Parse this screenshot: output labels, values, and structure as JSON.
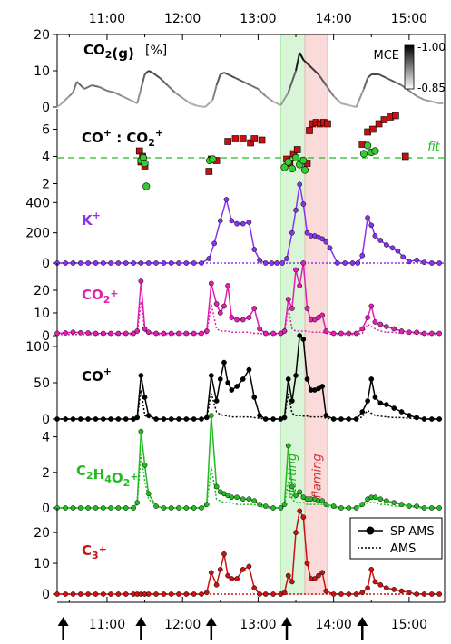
{
  "figure": {
    "time_ticks": [
      "11:00",
      "12:00",
      "13:00",
      "14:00",
      "15:00"
    ],
    "shade_labels": [
      "starting",
      "flaming"
    ],
    "mce_label": "MCE",
    "mce_ticks": [
      "1.00",
      "0.85"
    ],
    "fit_label": "fit",
    "legend": [
      "SP-AMS",
      "AMS"
    ],
    "colors": {
      "k": "#8833ee",
      "co2": "#e020b0",
      "co": "#000000",
      "c2h4o2": "#22bb22",
      "c3": "#cc1111",
      "ratio_square": "#c81010",
      "ratio_circle": "#33cc33",
      "fit_line": "#22bb22",
      "starting_shade": "#d8f5d8",
      "flaming_shade": "#fbdada"
    },
    "markers": {
      "arrow_times": [
        10.42,
        11.45,
        12.38,
        13.38,
        14.38
      ],
      "starting_band": [
        13.3,
        13.62
      ],
      "flaming_band": [
        13.62,
        13.92
      ]
    }
  },
  "chart_data": [
    {
      "type": "line",
      "panel": "co2_gas",
      "title": "CO2(g) [%]",
      "ylim": [
        0,
        20
      ],
      "yticks": [
        0,
        10,
        20
      ],
      "x": [
        10.34,
        10.4,
        10.5,
        10.55,
        10.6,
        10.7,
        10.8,
        10.9,
        11.0,
        11.1,
        11.2,
        11.3,
        11.4,
        11.45,
        11.5,
        11.55,
        11.6,
        11.7,
        11.8,
        11.9,
        12.0,
        12.1,
        12.2,
        12.3,
        12.4,
        12.45,
        12.5,
        12.55,
        12.6,
        12.7,
        12.8,
        12.9,
        13.0,
        13.1,
        13.2,
        13.3,
        13.4,
        13.5,
        13.55,
        13.6,
        13.7,
        13.8,
        13.9,
        14.0,
        14.1,
        14.2,
        14.3,
        14.4,
        14.45,
        14.5,
        14.6,
        14.7,
        14.8,
        14.9,
        15.0,
        15.1,
        15.2,
        15.3,
        15.4,
        15.45
      ],
      "values": [
        0,
        1,
        3,
        4,
        7,
        5,
        6,
        5.5,
        4.5,
        4,
        3,
        2,
        1,
        5,
        9,
        10,
        9.5,
        8,
        6,
        4,
        2.5,
        1,
        0.3,
        0,
        2,
        6,
        9,
        9.5,
        9,
        8,
        7,
        6,
        5,
        3,
        1.5,
        0.5,
        4,
        10,
        15,
        13,
        11,
        9,
        6,
        3,
        1,
        0.5,
        0,
        5,
        8,
        9,
        9,
        8,
        7,
        6,
        4.5,
        3,
        2,
        1.5,
        1,
        1
      ],
      "mce_colorbar": [
        0.85,
        1.0
      ]
    },
    {
      "type": "scatter",
      "panel": "co_co2_ratio",
      "title": "CO+ : CO2+",
      "ylim": [
        1.5,
        7.5
      ],
      "yticks": [
        2,
        4,
        6
      ],
      "fit": 3.9,
      "series": [
        {
          "marker": "square",
          "points": [
            [
              11.43,
              4.4
            ],
            [
              11.45,
              3.6
            ],
            [
              11.47,
              4.0
            ],
            [
              11.5,
              3.3
            ],
            [
              12.35,
              2.9
            ],
            [
              12.38,
              3.8
            ],
            [
              12.45,
              3.7
            ],
            [
              12.6,
              5.1
            ],
            [
              12.7,
              5.3
            ],
            [
              12.8,
              5.3
            ],
            [
              12.9,
              5.0
            ],
            [
              12.95,
              5.3
            ],
            [
              13.05,
              5.2
            ],
            [
              13.38,
              3.8
            ],
            [
              13.42,
              3.5
            ],
            [
              13.47,
              4.2
            ],
            [
              13.52,
              4.5
            ],
            [
              13.65,
              3.5
            ],
            [
              13.68,
              5.9
            ],
            [
              13.72,
              6.4
            ],
            [
              13.77,
              6.5
            ],
            [
              13.82,
              6.4
            ],
            [
              13.87,
              6.5
            ],
            [
              13.92,
              6.4
            ],
            [
              14.38,
              4.9
            ],
            [
              14.45,
              5.8
            ],
            [
              14.52,
              6.0
            ],
            [
              14.6,
              6.4
            ],
            [
              14.67,
              6.7
            ],
            [
              14.75,
              6.9
            ],
            [
              14.82,
              7.0
            ],
            [
              14.95,
              4.0
            ]
          ]
        },
        {
          "marker": "circle",
          "points": [
            [
              11.45,
              3.7
            ],
            [
              11.48,
              3.9
            ],
            [
              11.5,
              3.5
            ],
            [
              11.52,
              1.8
            ],
            [
              12.36,
              3.7
            ],
            [
              12.4,
              3.8
            ],
            [
              13.35,
              3.2
            ],
            [
              13.4,
              3.6
            ],
            [
              13.45,
              3.1
            ],
            [
              13.5,
              3.9
            ],
            [
              13.55,
              3.4
            ],
            [
              13.6,
              3.7
            ],
            [
              13.62,
              3.0
            ],
            [
              14.4,
              4.2
            ],
            [
              14.45,
              4.8
            ],
            [
              14.5,
              4.3
            ],
            [
              14.55,
              4.4
            ]
          ]
        }
      ]
    },
    {
      "type": "line",
      "panel": "k",
      "title": "K+",
      "ylim": [
        0,
        480
      ],
      "yticks": [
        0,
        200,
        400
      ],
      "x": [
        10.34,
        10.45,
        10.55,
        10.65,
        10.75,
        10.85,
        10.95,
        11.05,
        11.15,
        11.25,
        11.35,
        11.45,
        11.55,
        11.65,
        11.75,
        11.85,
        11.95,
        12.05,
        12.15,
        12.25,
        12.35,
        12.42,
        12.5,
        12.58,
        12.65,
        12.72,
        12.8,
        12.88,
        12.95,
        13.02,
        13.1,
        13.18,
        13.25,
        13.32,
        13.38,
        13.45,
        13.5,
        13.55,
        13.6,
        13.65,
        13.7,
        13.75,
        13.8,
        13.85,
        13.9,
        13.95,
        14.05,
        14.15,
        14.25,
        14.32,
        14.38,
        14.45,
        14.5,
        14.55,
        14.62,
        14.7,
        14.78,
        14.85,
        14.92,
        15.0,
        15.1,
        15.2,
        15.3,
        15.4
      ],
      "values": [
        0,
        0,
        0,
        0,
        0,
        0,
        0,
        0,
        0,
        0,
        0,
        0,
        0,
        0,
        0,
        0,
        0,
        0,
        0,
        0,
        30,
        130,
        280,
        420,
        280,
        260,
        260,
        270,
        90,
        20,
        0,
        0,
        0,
        0,
        30,
        200,
        350,
        520,
        390,
        200,
        180,
        180,
        170,
        160,
        140,
        100,
        0,
        0,
        0,
        0,
        50,
        300,
        250,
        180,
        150,
        120,
        100,
        80,
        40,
        10,
        20,
        5,
        0,
        0
      ],
      "baseline": 0
    },
    {
      "type": "line",
      "panel": "co2_ion",
      "title": "CO2+",
      "ylim": [
        0,
        32
      ],
      "yticks": [
        0,
        10,
        20
      ],
      "x": [
        10.34,
        10.45,
        10.55,
        10.65,
        10.75,
        10.85,
        10.95,
        11.05,
        11.15,
        11.25,
        11.35,
        11.4,
        11.45,
        11.5,
        11.55,
        11.65,
        11.75,
        11.85,
        11.95,
        12.05,
        12.15,
        12.25,
        12.32,
        12.38,
        12.45,
        12.5,
        12.55,
        12.6,
        12.65,
        12.72,
        12.8,
        12.88,
        12.95,
        13.02,
        13.1,
        13.2,
        13.3,
        13.35,
        13.4,
        13.45,
        13.5,
        13.55,
        13.6,
        13.65,
        13.7,
        13.75,
        13.8,
        13.85,
        13.9,
        14.0,
        14.1,
        14.2,
        14.3,
        14.38,
        14.45,
        14.5,
        14.55,
        14.62,
        14.7,
        14.8,
        14.9,
        15.0,
        15.1,
        15.2,
        15.3,
        15.4
      ],
      "values": [
        1,
        1.2,
        1.5,
        1.3,
        1.2,
        1,
        1,
        1,
        1,
        1,
        1,
        2,
        24,
        3,
        1.5,
        1,
        1,
        1,
        1,
        1,
        1,
        1,
        2,
        23,
        14,
        10,
        13,
        22,
        8,
        7,
        7,
        8,
        12,
        3,
        1,
        1,
        1,
        2,
        16,
        12,
        29,
        22,
        32,
        12,
        7,
        7,
        8,
        9,
        2,
        1,
        1,
        1,
        1,
        3,
        8,
        13,
        6,
        5,
        4,
        3,
        2,
        1.5,
        1.5,
        1,
        1,
        1
      ],
      "dotted": [
        0.5,
        0.5,
        0.5,
        0.5,
        0.5,
        0.5,
        0.5,
        0.5,
        0.5,
        0.5,
        0.5,
        1,
        15,
        2,
        1,
        0.5,
        0.5,
        0.5,
        0.5,
        0.5,
        0.5,
        0.5,
        1,
        14,
        3,
        2,
        2,
        2,
        1.5,
        1.5,
        1.5,
        1.5,
        1,
        1,
        0.5,
        0.5,
        0.5,
        1,
        12,
        3,
        2,
        2,
        2,
        2,
        1.5,
        1.5,
        1.5,
        1.5,
        1,
        0.5,
        0.5,
        0.5,
        0.5,
        1,
        5,
        4,
        3,
        2,
        1.5,
        1.5,
        1,
        1,
        1,
        0.5,
        0.5,
        0.5
      ]
    },
    {
      "type": "line",
      "panel": "co_ion",
      "title": "CO+",
      "ylim": [
        0,
        115
      ],
      "yticks": [
        0,
        50,
        100
      ],
      "x": [
        10.34,
        10.45,
        10.55,
        10.65,
        10.75,
        10.85,
        10.95,
        11.05,
        11.15,
        11.25,
        11.35,
        11.4,
        11.45,
        11.5,
        11.55,
        11.65,
        11.75,
        11.85,
        11.95,
        12.05,
        12.15,
        12.25,
        12.32,
        12.38,
        12.45,
        12.5,
        12.55,
        12.6,
        12.65,
        12.72,
        12.8,
        12.88,
        12.95,
        13.02,
        13.1,
        13.2,
        13.3,
        13.35,
        13.4,
        13.45,
        13.5,
        13.55,
        13.6,
        13.65,
        13.7,
        13.75,
        13.8,
        13.85,
        13.9,
        14.0,
        14.1,
        14.2,
        14.3,
        14.38,
        14.45,
        14.5,
        14.55,
        14.62,
        14.7,
        14.8,
        14.9,
        15.0,
        15.1,
        15.2,
        15.3,
        15.4
      ],
      "values": [
        0,
        0,
        0,
        0,
        0,
        0,
        0,
        0,
        0,
        0,
        0,
        2,
        60,
        30,
        5,
        0,
        0,
        0,
        0,
        0,
        0,
        0,
        2,
        60,
        25,
        55,
        78,
        50,
        40,
        45,
        55,
        68,
        30,
        5,
        0,
        0,
        0,
        2,
        55,
        25,
        60,
        115,
        110,
        55,
        40,
        40,
        42,
        45,
        5,
        0,
        0,
        0,
        0,
        10,
        25,
        55,
        30,
        22,
        20,
        15,
        10,
        5,
        2,
        0,
        0,
        0
      ],
      "dotted": [
        0,
        0,
        0,
        0,
        0,
        0,
        0,
        0,
        0,
        0,
        0,
        1,
        40,
        5,
        2,
        0,
        0,
        0,
        0,
        0,
        0,
        0,
        1,
        35,
        10,
        6,
        5,
        4,
        3,
        3,
        3,
        3,
        2,
        1,
        0,
        0,
        0,
        1,
        35,
        8,
        5,
        5,
        4,
        4,
        3,
        3,
        3,
        3,
        1,
        0,
        0,
        0,
        0,
        3,
        12,
        8,
        5,
        4,
        3,
        2,
        2,
        1,
        1,
        0,
        0,
        0
      ]
    },
    {
      "type": "line",
      "panel": "c2h4o2_ion",
      "title": "C2H4O2+",
      "ylim": [
        0,
        5
      ],
      "yticks": [
        0,
        2,
        4
      ],
      "x": [
        10.34,
        10.45,
        10.55,
        10.65,
        10.75,
        10.85,
        10.95,
        11.05,
        11.15,
        11.25,
        11.35,
        11.4,
        11.45,
        11.5,
        11.55,
        11.65,
        11.75,
        11.85,
        11.95,
        12.05,
        12.15,
        12.25,
        12.32,
        12.38,
        12.45,
        12.5,
        12.55,
        12.6,
        12.65,
        12.72,
        12.8,
        12.88,
        12.95,
        13.02,
        13.1,
        13.2,
        13.3,
        13.35,
        13.4,
        13.45,
        13.5,
        13.55,
        13.6,
        13.65,
        13.7,
        13.75,
        13.8,
        13.85,
        13.9,
        14.0,
        14.1,
        14.2,
        14.3,
        14.38,
        14.45,
        14.5,
        14.55,
        14.62,
        14.7,
        14.8,
        14.9,
        15.0,
        15.1,
        15.2,
        15.3,
        15.4
      ],
      "values": [
        0,
        0,
        0,
        0,
        0,
        0,
        0,
        0,
        0,
        0,
        0,
        0.3,
        4.3,
        2.4,
        0.8,
        0.1,
        0,
        0,
        0,
        0,
        0,
        0,
        0.2,
        5.2,
        1.2,
        0.9,
        0.8,
        0.7,
        0.6,
        0.6,
        0.5,
        0.5,
        0.4,
        0.2,
        0.1,
        0,
        0,
        0.2,
        3.5,
        1.2,
        0.7,
        0.9,
        0.6,
        0.5,
        0.5,
        0.5,
        0.4,
        0.4,
        0.2,
        0.1,
        0,
        0,
        0,
        0.2,
        0.5,
        0.6,
        0.6,
        0.5,
        0.4,
        0.3,
        0.2,
        0.1,
        0.1,
        0,
        0,
        0
      ],
      "dotted": [
        0,
        0,
        0,
        0,
        0,
        0,
        0,
        0,
        0,
        0,
        0,
        0.2,
        3.0,
        1.5,
        0.5,
        0.1,
        0,
        0,
        0,
        0,
        0,
        0,
        0.1,
        2.3,
        0.5,
        0.4,
        0.3,
        0.3,
        0.3,
        0.2,
        0.2,
        0.2,
        0.2,
        0.1,
        0,
        0,
        0,
        0.1,
        1.5,
        0.5,
        0.3,
        0.3,
        0.3,
        0.2,
        0.2,
        0.2,
        0.2,
        0.2,
        0.1,
        0,
        0,
        0,
        0,
        0.1,
        0.3,
        0.3,
        0.3,
        0.2,
        0.2,
        0.1,
        0.1,
        0.1,
        0,
        0,
        0,
        0
      ]
    },
    {
      "type": "line",
      "panel": "c3_ion",
      "title": "C3+",
      "ylim": [
        0,
        28
      ],
      "yticks": [
        0,
        10,
        20
      ],
      "x": [
        10.34,
        10.45,
        10.55,
        10.65,
        10.75,
        10.85,
        10.95,
        11.05,
        11.15,
        11.25,
        11.35,
        11.4,
        11.45,
        11.5,
        11.55,
        11.65,
        11.75,
        11.85,
        11.95,
        12.05,
        12.15,
        12.25,
        12.32,
        12.38,
        12.45,
        12.5,
        12.55,
        12.6,
        12.65,
        12.72,
        12.8,
        12.88,
        12.95,
        13.02,
        13.1,
        13.2,
        13.3,
        13.35,
        13.4,
        13.45,
        13.5,
        13.55,
        13.6,
        13.65,
        13.7,
        13.75,
        13.8,
        13.85,
        13.9,
        14.0,
        14.1,
        14.2,
        14.3,
        14.38,
        14.45,
        14.5,
        14.55,
        14.62,
        14.7,
        14.8,
        14.9,
        15.0,
        15.1,
        15.2,
        15.3,
        15.4
      ],
      "values": [
        0,
        0,
        0,
        0,
        0,
        0,
        0,
        0,
        0,
        0,
        0,
        0,
        0,
        0,
        0,
        0,
        0,
        0,
        0,
        0,
        0,
        0,
        0.5,
        7,
        3,
        8,
        13,
        6,
        5,
        5,
        8,
        9,
        2,
        0,
        0,
        0,
        0,
        0.5,
        6,
        4,
        20,
        27,
        25,
        10,
        5,
        5,
        6,
        7,
        1,
        0,
        0,
        0,
        0,
        0.5,
        2,
        8,
        4,
        3,
        2,
        1.5,
        1,
        0.5,
        0,
        0,
        0,
        0
      ],
      "dotted": [
        0,
        0,
        0,
        0,
        0,
        0,
        0,
        0,
        0,
        0,
        0,
        0,
        0,
        0,
        0,
        0,
        0,
        0,
        0,
        0,
        0,
        0,
        0,
        0,
        0,
        0,
        0,
        0,
        0,
        0,
        0,
        0,
        0,
        0,
        0,
        0,
        0,
        0,
        0,
        0,
        0,
        0,
        0,
        0,
        0,
        0,
        0,
        0,
        0,
        0,
        0,
        0,
        0,
        0,
        0,
        0,
        0,
        0,
        0,
        0,
        0,
        0,
        0,
        0,
        0,
        0
      ]
    }
  ]
}
